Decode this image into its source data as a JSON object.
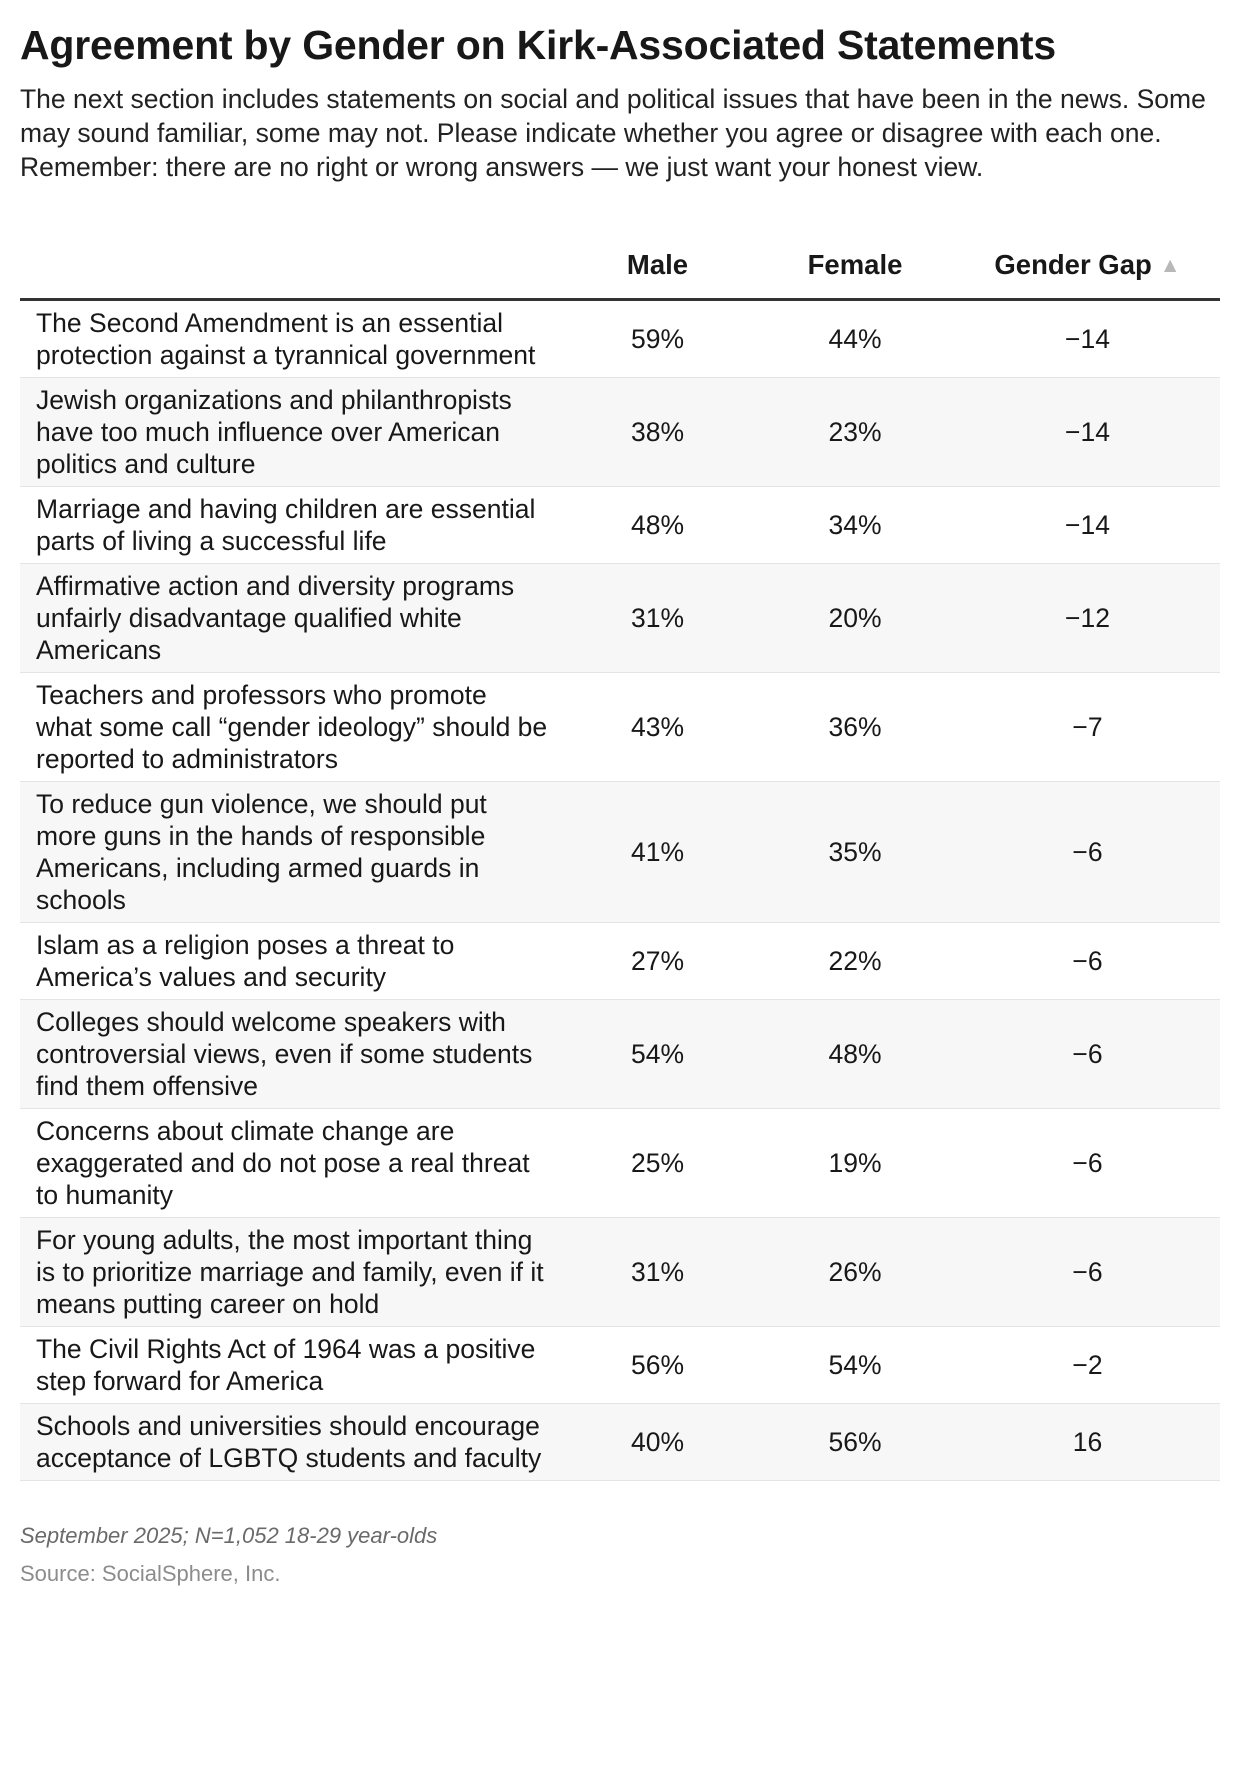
{
  "title": "Agreement by Gender on Kirk-Associated Statements",
  "subtitle": "The next section includes statements on social and political issues that have been in the news. Some may sound familiar, some may not. Please indicate whether you agree or disagree with each one. Remember: there are no right or wrong answers — we just want your honest view.",
  "columns": {
    "statement": "",
    "male": "Male",
    "female": "Female",
    "gap": "Gender Gap",
    "sort_icon": "sort-ascending-triangle-icon"
  },
  "chart_data": {
    "type": "table",
    "title": "Agreement by Gender on Kirk-Associated Statements",
    "columns": [
      "",
      "Male",
      "Female",
      "Gender Gap"
    ],
    "rows": [
      {
        "statement": "The Second Amendment is an essential protection against a tyrannical government",
        "male": "59%",
        "female": "44%",
        "gap": "−14"
      },
      {
        "statement": "Jewish organizations and philanthropists have too much influence over American politics and culture",
        "male": "38%",
        "female": "23%",
        "gap": "−14"
      },
      {
        "statement": "Marriage and having children are essential parts of living a successful life",
        "male": "48%",
        "female": "34%",
        "gap": "−14"
      },
      {
        "statement": "Affirmative action and diversity programs unfairly disadvantage qualified white Americans",
        "male": "31%",
        "female": "20%",
        "gap": "−12"
      },
      {
        "statement": "Teachers and professors who promote what some call “gender ideology” should be reported to administrators",
        "male": "43%",
        "female": "36%",
        "gap": "−7"
      },
      {
        "statement": "To reduce gun violence, we should put more guns in the hands of responsible Americans, including armed guards in schools",
        "male": "41%",
        "female": "35%",
        "gap": "−6"
      },
      {
        "statement": "Islam as a religion poses a threat to America’s values and security",
        "male": "27%",
        "female": "22%",
        "gap": "−6"
      },
      {
        "statement": "Colleges should welcome speakers with controversial views, even if some students find them offensive",
        "male": "54%",
        "female": "48%",
        "gap": "−6"
      },
      {
        "statement": "Concerns about climate change are exaggerated and do not pose a real threat to humanity",
        "male": "25%",
        "female": "19%",
        "gap": "−6"
      },
      {
        "statement": "For young adults, the most important thing is to prioritize marriage and family, even if it means putting career on hold",
        "male": "31%",
        "female": "26%",
        "gap": "−6"
      },
      {
        "statement": "The Civil Rights Act of 1964 was a positive step forward for America",
        "male": "56%",
        "female": "54%",
        "gap": "−2"
      },
      {
        "statement": "Schools and universities should encourage acceptance of LGBTQ students and faculty",
        "male": "40%",
        "female": "56%",
        "gap": "16"
      }
    ]
  },
  "footer": {
    "note": "September 2025; N=1,052 18-29 year-olds",
    "source": "Source: SocialSphere, Inc."
  },
  "colors": {
    "header_rule": "#333333",
    "row_alt": "#f7f7f7",
    "row_rule": "#e4e4e4"
  }
}
